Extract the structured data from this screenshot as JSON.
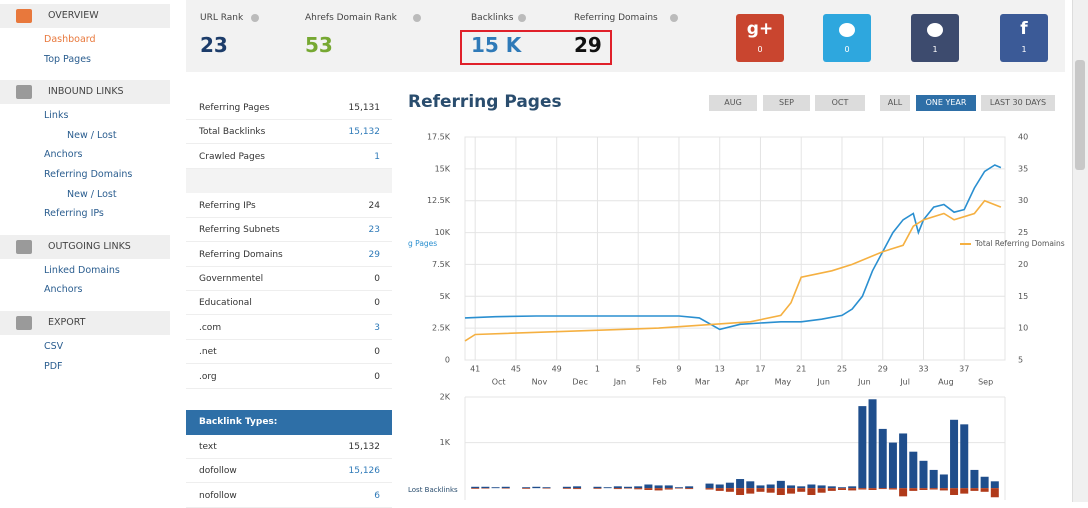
{
  "sidebar": {
    "sections": [
      {
        "title": "OVERVIEW",
        "active": true,
        "links": [
          {
            "text": "Dashboard",
            "active": true
          },
          {
            "text": "Top Pages"
          }
        ]
      },
      {
        "title": "INBOUND LINKS",
        "links": [
          {
            "text": "Links"
          },
          {
            "text": "New / Lost",
            "indent": true
          },
          {
            "text": "Anchors"
          },
          {
            "text": "Referring Domains"
          },
          {
            "text": "New / Lost",
            "indent": true
          },
          {
            "text": "Referring IPs"
          }
        ]
      },
      {
        "title": "OUTGOING LINKS",
        "links": [
          {
            "text": "Linked Domains"
          },
          {
            "text": "Anchors"
          }
        ]
      },
      {
        "title": "EXPORT",
        "links": [
          {
            "text": "CSV"
          },
          {
            "text": "PDF"
          }
        ]
      }
    ]
  },
  "stats": [
    {
      "label": "URL Rank",
      "value": "23",
      "color": "#1c3c6a"
    },
    {
      "label": "Ahrefs Domain Rank",
      "value": "53",
      "color": "#76a832"
    },
    {
      "label": "Backlinks",
      "value": "15 K",
      "color": "#2f7ab8",
      "boxed": true
    },
    {
      "label": "Referring Domains",
      "value": "29",
      "color": "#111111",
      "boxed": true
    }
  ],
  "social": [
    {
      "icon": "g+",
      "count": "0",
      "color": "#c9452f"
    },
    {
      "count": "0",
      "color": "#2ea7de"
    },
    {
      "count": "1",
      "color": "#3d4b6e"
    },
    {
      "icon": "f",
      "count": "1",
      "color": "#3b5a97"
    }
  ],
  "table": {
    "groups": [
      [
        [
          "Referring Pages",
          "15,131"
        ],
        [
          "Total Backlinks",
          "15,132",
          true
        ],
        [
          "Crawled Pages",
          "1",
          true
        ]
      ],
      [
        [
          "Referring IPs",
          "24"
        ],
        [
          "Referring Subnets",
          "23",
          true
        ],
        [
          "Referring Domains",
          "29",
          true
        ],
        [
          "Governmentel",
          "0"
        ],
        [
          "Educational",
          "0"
        ],
        [
          ".com",
          "3",
          true
        ],
        [
          ".net",
          "0"
        ],
        [
          ".org",
          "0"
        ]
      ]
    ]
  },
  "backlink_types": {
    "title": "Backlink Types:",
    "rows": [
      [
        "text",
        "15,132"
      ],
      [
        "dofollow",
        "15,126",
        true
      ],
      [
        "nofollow",
        "6",
        true
      ]
    ]
  },
  "chart_data": [
    {
      "type": "line",
      "title": "Referring Pages",
      "buttons": [
        "AUG",
        "SEP",
        "OCT",
        "ALL",
        "ONE YEAR",
        "LAST 30 DAYS"
      ],
      "active_button": 4,
      "xlim": [
        -1,
        52
      ],
      "xticks": [
        {
          "value": 0,
          "label": "41"
        },
        {
          "value": 4,
          "label": "45"
        },
        {
          "value": 8,
          "label": "49"
        },
        {
          "value": 12,
          "label": "1"
        },
        {
          "value": 16,
          "label": "5"
        },
        {
          "value": 20,
          "label": "9"
        },
        {
          "value": 24,
          "label": "13"
        },
        {
          "value": 28,
          "label": "17"
        },
        {
          "value": 32,
          "label": "21"
        },
        {
          "value": 36,
          "label": "25"
        },
        {
          "value": 40,
          "label": "29"
        },
        {
          "value": 44,
          "label": "33"
        },
        {
          "value": 48,
          "label": "37"
        }
      ],
      "xticks2": [
        {
          "value": 2.3,
          "label": "Oct"
        },
        {
          "value": 6.3,
          "label": "Nov"
        },
        {
          "value": 10.3,
          "label": "Dec"
        },
        {
          "value": 14.2,
          "label": "Jan"
        },
        {
          "value": 18.1,
          "label": "Feb"
        },
        {
          "value": 22.3,
          "label": "Mar"
        },
        {
          "value": 26.2,
          "label": "Apr"
        },
        {
          "value": 30.2,
          "label": "May"
        },
        {
          "value": 34.2,
          "label": "Jun"
        },
        {
          "value": 38.2,
          "label": "Jun"
        },
        {
          "value": 42.2,
          "label": "Jul"
        },
        {
          "value": 46.2,
          "label": "Aug"
        },
        {
          "value": 50.1,
          "label": "Sep"
        }
      ],
      "ylim": [
        0,
        17500
      ],
      "yticks": [
        0,
        {
          "value": 2500,
          "label": "2.5K"
        },
        {
          "value": 5000,
          "label": "5K"
        },
        {
          "value": 7500,
          "label": "7.5K"
        },
        {
          "value": 10000,
          "label": "10K"
        },
        {
          "value": 12500,
          "label": "12.5K"
        },
        {
          "value": 15000,
          "label": "15K"
        },
        {
          "value": 17500,
          "label": "17.5K"
        }
      ],
      "y2lim": [
        5,
        40
      ],
      "y2ticks": [
        5,
        10,
        15,
        20,
        25,
        30,
        35,
        40
      ],
      "grid": true,
      "series": [
        {
          "name": "g Pages",
          "color": "#2a8fd0",
          "x": [
            -1,
            2,
            6,
            10,
            14,
            18,
            20,
            22,
            24,
            26,
            28,
            30,
            32,
            34,
            36,
            37,
            38,
            39,
            40,
            41,
            42,
            43,
            43.5,
            44,
            45,
            46,
            47,
            48,
            49,
            50,
            51,
            51.6
          ],
          "values": [
            3300,
            3400,
            3450,
            3450,
            3450,
            3450,
            3450,
            3300,
            2400,
            2800,
            2900,
            3000,
            3000,
            3200,
            3500,
            4000,
            5000,
            7000,
            8500,
            10000,
            11000,
            11500,
            10000,
            11000,
            12000,
            12200,
            11600,
            11800,
            13500,
            14800,
            15300,
            15100
          ]
        },
        {
          "name": "Total Referring Domains",
          "color": "#f5b041",
          "axis": "y2",
          "x": [
            -1,
            0,
            18,
            27,
            30,
            31,
            32,
            35,
            37,
            40,
            42,
            43,
            44,
            46,
            47,
            49,
            50,
            51.6
          ],
          "values": [
            8,
            9,
            10,
            11,
            12,
            14,
            18,
            19,
            20,
            22,
            23,
            26,
            27,
            28,
            27,
            28,
            30,
            29
          ]
        }
      ]
    },
    {
      "type": "bar",
      "xlim": [
        -1,
        52
      ],
      "ylim": [
        -260,
        2000
      ],
      "yticks": [
        {
          "value": 1000,
          "label": "1K"
        },
        {
          "value": 2000,
          "label": "2K"
        }
      ],
      "grid": true,
      "x": [
        0,
        1,
        2,
        3,
        4,
        5,
        6,
        7,
        8,
        9,
        10,
        11,
        12,
        13,
        14,
        15,
        16,
        17,
        18,
        19,
        20,
        21,
        22,
        23,
        24,
        25,
        26,
        27,
        28,
        29,
        30,
        31,
        32,
        33,
        34,
        35,
        36,
        37,
        38,
        39,
        40,
        41,
        42,
        43,
        44,
        45,
        46,
        47,
        48,
        49,
        50,
        51
      ],
      "series": [
        {
          "color": "#1f4e8c",
          "values": [
            30,
            30,
            20,
            30,
            0,
            20,
            30,
            20,
            0,
            30,
            40,
            0,
            30,
            20,
            40,
            30,
            40,
            80,
            60,
            60,
            20,
            40,
            0,
            100,
            80,
            120,
            200,
            150,
            60,
            80,
            160,
            60,
            40,
            80,
            60,
            40,
            20,
            40,
            1800,
            1950,
            1300,
            1000,
            1200,
            800,
            600,
            400,
            300,
            1500,
            1400,
            400,
            250,
            150
          ]
        },
        {
          "name": "Lost Backlinks",
          "color": "#b03a1a",
          "values": [
            -15,
            -10,
            0,
            -10,
            0,
            -15,
            0,
            -10,
            0,
            -15,
            -20,
            0,
            -15,
            0,
            -20,
            -10,
            -25,
            -40,
            -50,
            -30,
            -10,
            -20,
            0,
            -30,
            -60,
            -80,
            -150,
            -120,
            -80,
            -100,
            -150,
            -120,
            -80,
            -150,
            -100,
            -60,
            -40,
            -50,
            -30,
            -40,
            -20,
            -30,
            -180,
            -60,
            -40,
            -30,
            -50,
            -150,
            -120,
            -60,
            -80,
            -200
          ]
        }
      ]
    }
  ]
}
